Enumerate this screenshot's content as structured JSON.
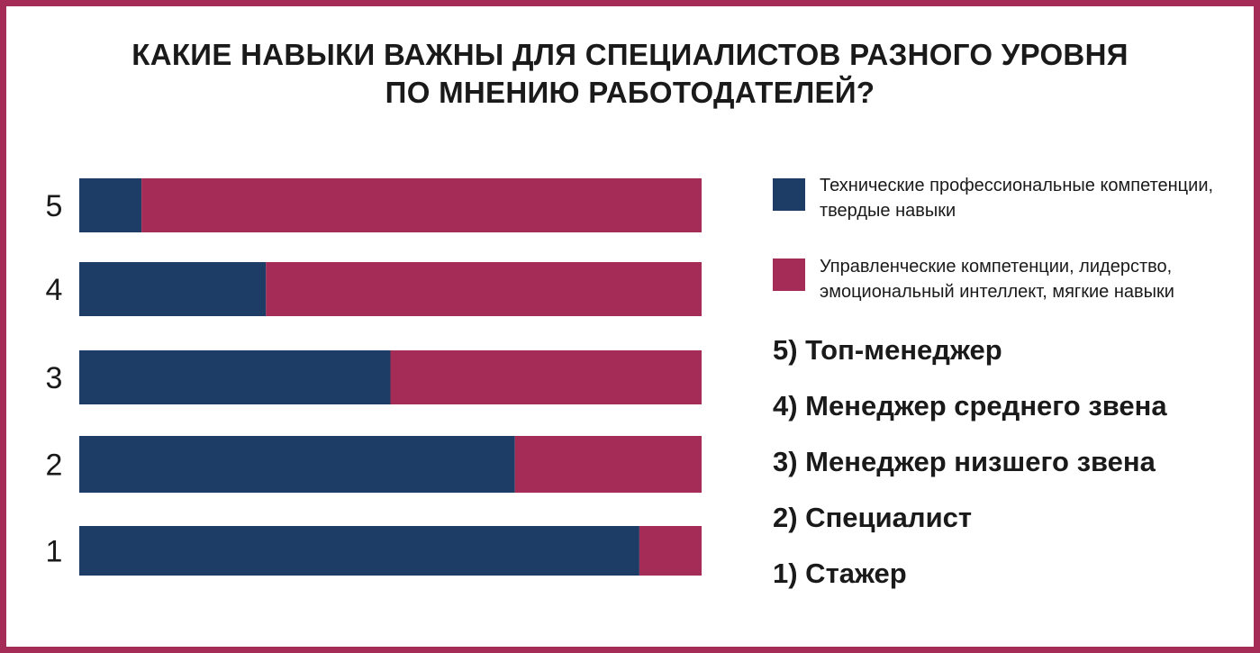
{
  "title": {
    "line1": "КАКИЕ НАВЫКИ ВАЖНЫ ДЛЯ СПЕЦИАЛИСТОВ РАЗНОГО УРОВНЯ",
    "line2": "ПО МНЕНИЮ РАБОТОДАТЕЛЕЙ?"
  },
  "colors": {
    "frame": "#a52c56",
    "technical": "#1d3d66",
    "managerial": "#a52c56"
  },
  "chart_data": {
    "type": "bar",
    "orientation": "horizontal",
    "stacked": true,
    "categories": [
      "5",
      "4",
      "3",
      "2",
      "1"
    ],
    "series": [
      {
        "name": "Технические профессиональные компетенции, твердые навыки",
        "color": "#1d3d66",
        "values": [
          10,
          30,
          50,
          70,
          90
        ]
      },
      {
        "name": "Управленческие компетенции, лидерство, эмоциональный интеллект, мягкие навыки",
        "color": "#a52c56",
        "values": [
          90,
          70,
          50,
          30,
          10
        ]
      }
    ],
    "xlim": [
      0,
      100
    ],
    "grid": false,
    "legend": "right"
  },
  "legend": {
    "items": [
      {
        "label": "Технические профессиональные компетенции, твердые навыки"
      },
      {
        "label": "Управленческие компетенции, лидерство, эмоциональный интеллект, мягкие навыки"
      }
    ]
  },
  "levels": [
    "5) Топ-менеджер",
    "4) Менеджер среднего звена",
    "3) Менеджер низшего звена",
    "2) Специалист",
    "1) Стажер"
  ]
}
